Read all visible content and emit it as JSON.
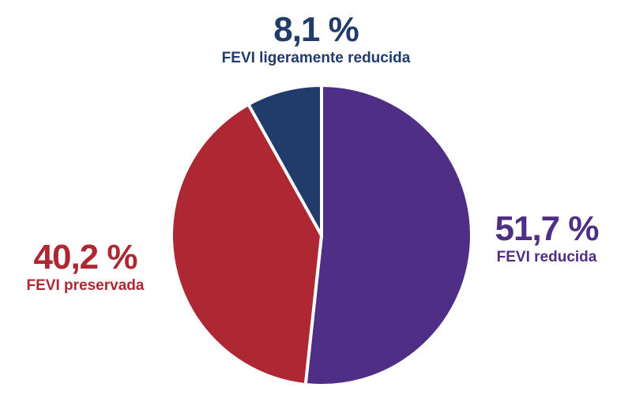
{
  "chart_data": {
    "type": "pie",
    "slices": [
      {
        "label": "FEVI ligeramente reducida",
        "value": 8.1,
        "display": "8,1 %",
        "color": "#213b6b"
      },
      {
        "label": "FEVI reducida",
        "value": 51.7,
        "display": "51,7 %",
        "color": "#4f2f85"
      },
      {
        "label": "FEVI preservada",
        "value": 40.2,
        "display": "40,2 %",
        "color": "#ad2833"
      }
    ],
    "start": "12 o'clock",
    "direction": "clockwise order: FEVI reducida, FEVI preservada, FEVI ligeramente reducida",
    "separator_color": "#ffffff"
  }
}
